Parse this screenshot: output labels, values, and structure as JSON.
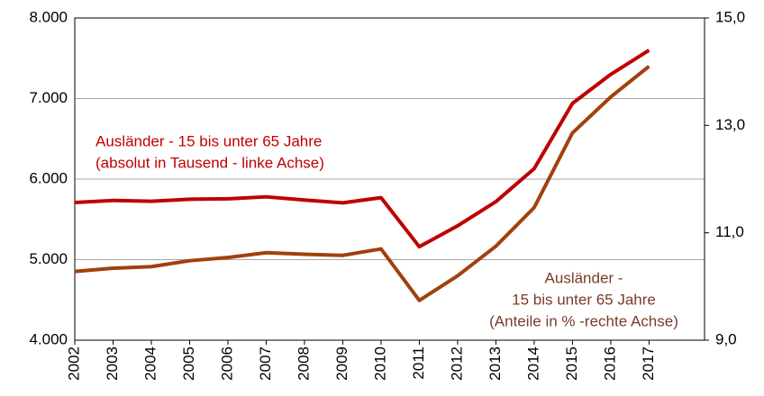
{
  "chart_data": {
    "type": "line",
    "x": [
      2002,
      2003,
      2004,
      2005,
      2006,
      2007,
      2008,
      2009,
      2010,
      2011,
      2012,
      2013,
      2014,
      2015,
      2016,
      2017
    ],
    "xlim": [
      2002,
      2018.45
    ],
    "xticks": [
      2002,
      2003,
      2004,
      2005,
      2006,
      2007,
      2008,
      2009,
      2010,
      2011,
      2012,
      2013,
      2014,
      2015,
      2016,
      2017
    ],
    "ylim": [
      4000,
      8000
    ],
    "yticks": [
      {
        "value": 4000,
        "label": "4.000"
      },
      {
        "value": 5000,
        "label": "5.000"
      },
      {
        "value": 6000,
        "label": "6.000"
      },
      {
        "value": 7000,
        "label": "7.000"
      },
      {
        "value": 8000,
        "label": "8.000"
      }
    ],
    "y2lim": [
      9,
      15
    ],
    "y2ticks": [
      {
        "value": 9,
        "label": "9,0"
      },
      {
        "value": 11,
        "label": "11,0"
      },
      {
        "value": 13,
        "label": "13,0"
      },
      {
        "value": 15,
        "label": "15,0"
      }
    ],
    "grid": true,
    "series": [
      {
        "name": "Ausländer - 15 bis unter 65 Jahre (absolut in Tausend - linke Achse)",
        "color": "#c00000",
        "values": [
          5710,
          5735,
          5725,
          5750,
          5755,
          5780,
          5740,
          5705,
          5770,
          5160,
          5420,
          5720,
          6130,
          6940,
          7300,
          7600
        ]
      },
      {
        "name": "Ausländer - 15 bis unter 65 Jahre (Anteile in % -rechte Achse)",
        "color": "#a0410d",
        "axis": "y2",
        "values": [
          10.28,
          10.34,
          10.37,
          10.48,
          10.54,
          10.63,
          10.6,
          10.58,
          10.7,
          9.74,
          10.2,
          10.75,
          11.47,
          12.86,
          13.53,
          14.1
        ]
      }
    ],
    "annotations": [
      {
        "color": "#c00000",
        "lines": [
          "Ausländer - 15 bis unter 65 Jahre",
          "(absolut in Tausend - linke Achse)"
        ]
      },
      {
        "color": "#7a3b2a",
        "lines": [
          "Ausländer -",
          "15 bis unter 65 Jahre",
          "(Anteile in % -rechte Achse)"
        ]
      }
    ]
  }
}
